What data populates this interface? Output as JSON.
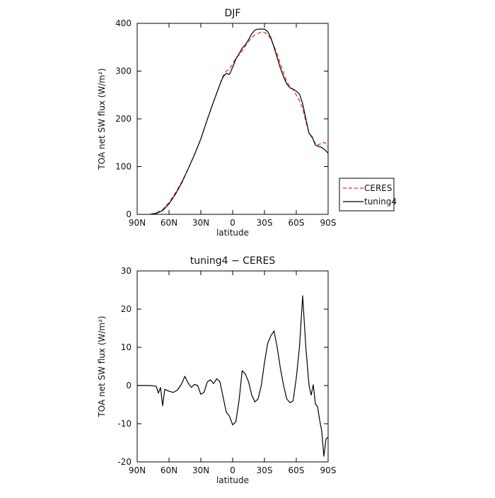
{
  "chart_data": [
    {
      "type": "line",
      "title": "DJF",
      "xlabel": "latitude",
      "ylabel": "TOA net SW flux (W/m²)",
      "xlim": [
        -90,
        90
      ],
      "ylim": [
        0,
        400
      ],
      "x_ticks": [
        -90,
        -60,
        -30,
        0,
        30,
        60,
        90
      ],
      "x_tick_labels": [
        "90N",
        "60N",
        "30N",
        "0",
        "30S",
        "60S",
        "90S"
      ],
      "y_ticks": [
        0,
        100,
        200,
        300,
        400
      ],
      "grid": false,
      "legend": {
        "placement": "right"
      },
      "series": [
        {
          "name": "CERES",
          "color": "#e8281e",
          "dash": "dashed",
          "x": [
            -78,
            -72,
            -66,
            -60,
            -54,
            -48,
            -42,
            -36,
            -30,
            -24,
            -18,
            -12,
            -9,
            -6,
            -3,
            0,
            3,
            6,
            9,
            12,
            15,
            18,
            21,
            24,
            27,
            30,
            33,
            36,
            39,
            42,
            45,
            48,
            51,
            54,
            57,
            60,
            63,
            66,
            69,
            72,
            75,
            78,
            81,
            84,
            87,
            90
          ],
          "y": [
            0,
            3,
            10,
            25,
            45,
            68,
            95,
            125,
            158,
            198,
            236,
            272,
            290,
            300,
            304,
            315,
            328,
            334,
            342,
            353,
            362,
            370,
            376,
            379,
            382,
            381,
            377,
            367,
            352,
            336,
            315,
            296,
            278,
            268,
            261,
            250,
            238,
            222,
            195,
            170,
            160,
            148,
            145,
            150,
            150,
            140
          ]
        },
        {
          "name": "tuning4",
          "color": "#000000",
          "dash": "solid",
          "x": [
            -78,
            -72,
            -66,
            -60,
            -54,
            -48,
            -42,
            -36,
            -30,
            -24,
            -18,
            -12,
            -9,
            -6,
            -3,
            0,
            3,
            6,
            9,
            12,
            15,
            18,
            21,
            24,
            27,
            30,
            33,
            36,
            39,
            42,
            45,
            48,
            51,
            54,
            57,
            60,
            63,
            66,
            69,
            72,
            75,
            78,
            81,
            84,
            87,
            90
          ],
          "y": [
            0,
            2,
            8,
            22,
            42,
            66,
            95,
            125,
            158,
            198,
            236,
            272,
            288,
            295,
            293,
            308,
            325,
            336,
            348,
            355,
            366,
            378,
            386,
            388,
            388,
            388,
            383,
            370,
            350,
            328,
            306,
            288,
            273,
            265,
            262,
            258,
            252,
            232,
            200,
            170,
            162,
            145,
            142,
            140,
            135,
            128
          ]
        }
      ]
    },
    {
      "type": "line",
      "title": "tuning4 − CERES",
      "xlabel": "latitude",
      "ylabel": "TOA net SW flux (W/m²)",
      "xlim": [
        -90,
        90
      ],
      "ylim": [
        -20,
        30
      ],
      "x_ticks": [
        -90,
        -60,
        -30,
        0,
        30,
        60,
        90
      ],
      "x_tick_labels": [
        "90N",
        "60N",
        "30N",
        "0",
        "30S",
        "60S",
        "90S"
      ],
      "y_ticks": [
        -20,
        -10,
        0,
        10,
        20,
        30
      ],
      "grid": false,
      "series": [
        {
          "color": "#000000",
          "dash": "solid",
          "x": [
            -90,
            -84,
            -78,
            -72,
            -70,
            -68,
            -66,
            -64,
            -60,
            -56,
            -52,
            -48,
            -45,
            -42,
            -39,
            -36,
            -33,
            -30,
            -27,
            -24,
            -21,
            -18,
            -15,
            -12,
            -9,
            -6,
            -3,
            0,
            3,
            6,
            9,
            12,
            15,
            18,
            21,
            24,
            27,
            30,
            33,
            36,
            39,
            42,
            45,
            48,
            51,
            54,
            57,
            60,
            63,
            66,
            69,
            72,
            74,
            76,
            78,
            80,
            82,
            84,
            86,
            88,
            90
          ],
          "y": [
            0,
            0,
            0,
            -0.2,
            -2.0,
            -0.5,
            -5.3,
            -1.0,
            -1.5,
            -1.8,
            -1.2,
            0.5,
            2.4,
            0.7,
            -0.5,
            0.3,
            0.0,
            -2.3,
            -1.8,
            0.9,
            1.5,
            0.5,
            1.8,
            1.0,
            -3.0,
            -7.0,
            -8.0,
            -10.3,
            -9.5,
            -4.0,
            3.9,
            3.0,
            1.0,
            -2.5,
            -4.3,
            -3.5,
            0.0,
            6.0,
            11.0,
            13.0,
            14.3,
            10.0,
            4.5,
            0.0,
            -3.5,
            -4.5,
            -4.0,
            2.0,
            10.0,
            23.5,
            10.0,
            0.0,
            -2.5,
            0.2,
            -4.8,
            -5.5,
            -9.0,
            -12.0,
            -18.5,
            -14.0,
            -13.5
          ]
        }
      ]
    }
  ]
}
